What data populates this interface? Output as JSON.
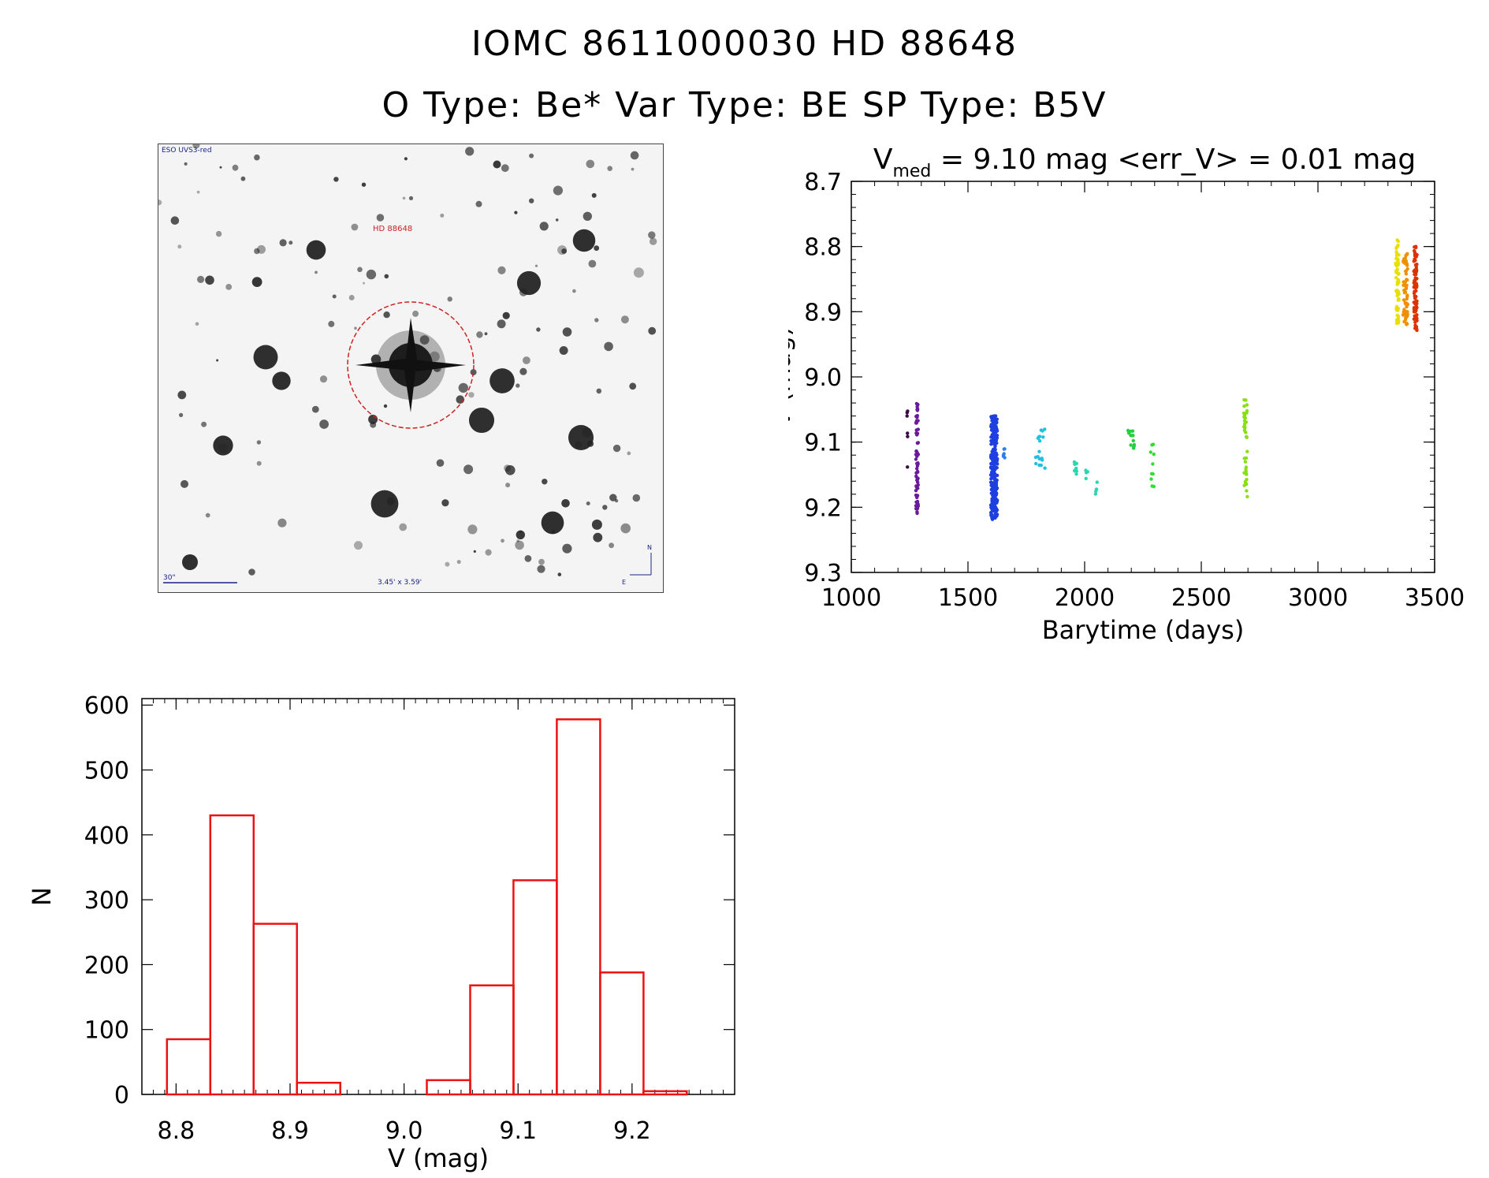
{
  "header": {
    "title_line1": "IOMC 8611000030   HD  88648",
    "title_line2": "O Type: Be*  Var Type: BE  SP Type: B5V"
  },
  "finder_chart": {
    "survey_label": "ESO UVS3-red",
    "target_label": "HD 88648",
    "scale_label": "30\"",
    "fov_label": "3.45' x 3.59'",
    "compass_n": "N",
    "compass_e": "E",
    "circle_color": "#cc2222"
  },
  "chart_data": [
    {
      "type": "scatter",
      "title_prefix": "V",
      "title_sub": "med",
      "title_rest": " = 9.10 mag <err_V> = 0.01 mag",
      "xlabel": "Barytime (days)",
      "ylabel": "V (mag)",
      "xlim": [
        1000,
        3500
      ],
      "ylim": [
        9.3,
        8.7
      ],
      "xticks": [
        1000,
        1500,
        2000,
        2500,
        3000,
        3500
      ],
      "yticks": [
        8.7,
        8.8,
        8.9,
        9.0,
        9.1,
        9.2,
        9.3
      ],
      "clusters": [
        {
          "x": 1240,
          "y_min": 9.05,
          "y_max": 9.14,
          "count": 6,
          "spread": 4,
          "color": "#3b0a45"
        },
        {
          "x": 1282,
          "y_min": 9.04,
          "y_max": 9.21,
          "count": 70,
          "spread": 10,
          "color": "#6a1b9a"
        },
        {
          "x": 1612,
          "y_min": 9.06,
          "y_max": 9.22,
          "count": 260,
          "spread": 28,
          "color": "#1f3fe0"
        },
        {
          "x": 1655,
          "y_min": 9.11,
          "y_max": 9.13,
          "count": 6,
          "spread": 6,
          "color": "#2a80e8"
        },
        {
          "x": 1810,
          "y_min": 9.08,
          "y_max": 9.14,
          "count": 18,
          "spread": 40,
          "color": "#22c0e0"
        },
        {
          "x": 1960,
          "y_min": 9.13,
          "y_max": 9.16,
          "count": 8,
          "spread": 14,
          "color": "#28d8b0"
        },
        {
          "x": 2008,
          "y_min": 9.14,
          "y_max": 9.16,
          "count": 4,
          "spread": 10,
          "color": "#28d8b0"
        },
        {
          "x": 2050,
          "y_min": 9.16,
          "y_max": 9.18,
          "count": 5,
          "spread": 8,
          "color": "#28d8b0"
        },
        {
          "x": 2200,
          "y_min": 9.08,
          "y_max": 9.11,
          "count": 14,
          "spread": 28,
          "color": "#22d040"
        },
        {
          "x": 2290,
          "y_min": 9.1,
          "y_max": 9.17,
          "count": 10,
          "spread": 14,
          "color": "#33dd33"
        },
        {
          "x": 2690,
          "y_min": 9.03,
          "y_max": 9.19,
          "count": 40,
          "spread": 16,
          "color": "#88e010"
        },
        {
          "x": 3340,
          "y_min": 8.79,
          "y_max": 8.92,
          "count": 60,
          "spread": 14,
          "color": "#e8e000"
        },
        {
          "x": 3375,
          "y_min": 8.81,
          "y_max": 8.92,
          "count": 60,
          "spread": 20,
          "color": "#f09000"
        },
        {
          "x": 3418,
          "y_min": 8.8,
          "y_max": 8.93,
          "count": 80,
          "spread": 14,
          "color": "#dd3300"
        }
      ]
    },
    {
      "type": "bar",
      "subtype": "histogram",
      "xlabel": "V (mag)",
      "ylabel": "N",
      "xlim": [
        8.77,
        9.29
      ],
      "ylim": [
        0,
        610
      ],
      "xticks": [
        8.8,
        8.9,
        9.0,
        9.1,
        9.2
      ],
      "yticks": [
        0,
        100,
        200,
        300,
        400,
        500,
        600
      ],
      "bin_width": 0.038,
      "bin_starts": [
        8.792,
        8.83,
        8.868,
        8.906,
        8.944,
        8.982,
        9.02,
        9.058,
        9.096,
        9.134,
        9.172,
        9.21
      ],
      "counts": [
        85,
        430,
        263,
        18,
        0,
        0,
        22,
        168,
        330,
        578,
        188,
        5
      ],
      "bar_color": "#ee1111"
    }
  ]
}
